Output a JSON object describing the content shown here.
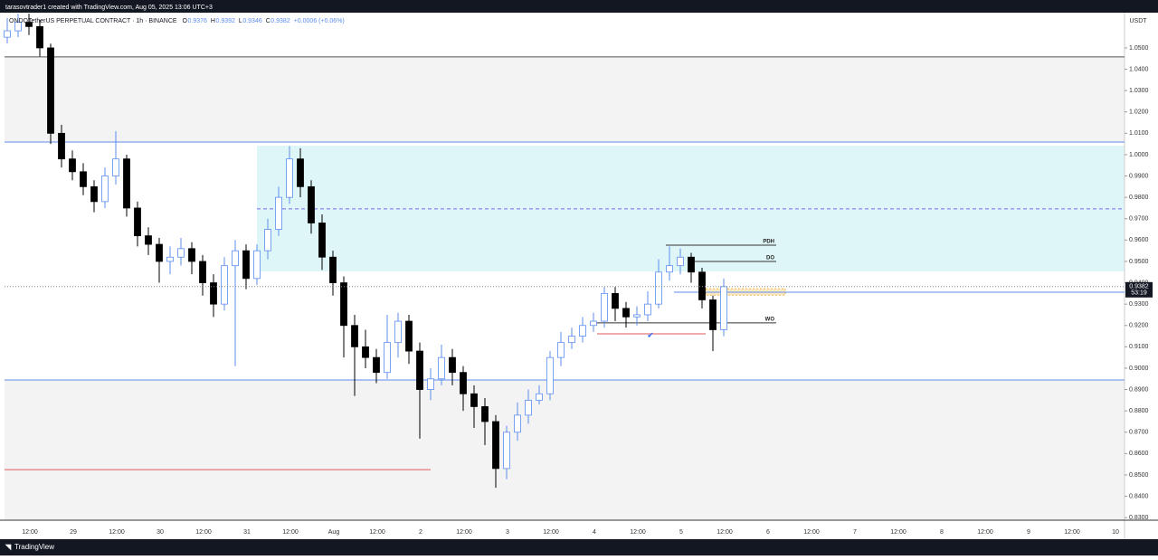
{
  "header": {
    "credit": "tarasovtrader1 created with TradingView.com, Aug 05, 2025 13:06 UTC+3",
    "footer": "TradingView"
  },
  "chart_data": {
    "type": "candlestick",
    "title": "ONDOTetherUS PERPETUAL CONTRACT · 1h · BINANCE",
    "ohlc": [
      {
        "label": "O",
        "value": 0.9376
      },
      {
        "label": "H",
        "value": 0.9392
      },
      {
        "label": "L",
        "value": 0.9346
      },
      {
        "label": "C",
        "value": 0.9382
      }
    ],
    "change": "+0.0006 (+0.06%)",
    "y_axis_label": "USDT",
    "up_color": "#5b8def",
    "down_color": "#000000",
    "candles": [
      [
        1.055,
        1.064,
        1.052,
        1.058
      ],
      [
        1.058,
        1.066,
        1.055,
        1.062
      ],
      [
        1.062,
        1.066,
        1.056,
        1.06
      ],
      [
        1.06,
        1.063,
        1.046,
        1.05
      ],
      [
        1.05,
        1.052,
        1.005,
        1.01
      ],
      [
        1.01,
        1.014,
        0.994,
        0.998
      ],
      [
        0.998,
        1.002,
        0.988,
        0.992
      ],
      [
        0.992,
        0.996,
        0.981,
        0.985
      ],
      [
        0.985,
        0.988,
        0.973,
        0.978
      ],
      [
        0.978,
        0.994,
        0.975,
        0.99
      ],
      [
        0.99,
        1.011,
        0.986,
        0.998
      ],
      [
        0.998,
        1.0,
        0.971,
        0.975
      ],
      [
        0.975,
        0.978,
        0.957,
        0.962
      ],
      [
        0.962,
        0.966,
        0.953,
        0.958
      ],
      [
        0.958,
        0.961,
        0.94,
        0.95
      ],
      [
        0.95,
        0.957,
        0.944,
        0.952
      ],
      [
        0.952,
        0.961,
        0.948,
        0.956
      ],
      [
        0.956,
        0.959,
        0.944,
        0.95
      ],
      [
        0.95,
        0.953,
        0.934,
        0.94
      ],
      [
        0.94,
        0.944,
        0.924,
        0.93
      ],
      [
        0.93,
        0.952,
        0.927,
        0.948
      ],
      [
        0.948,
        0.96,
        0.901,
        0.955
      ],
      [
        0.955,
        0.958,
        0.937,
        0.942
      ],
      [
        0.942,
        0.958,
        0.939,
        0.955
      ],
      [
        0.955,
        0.97,
        0.951,
        0.965
      ],
      [
        0.965,
        0.985,
        0.962,
        0.98
      ],
      [
        0.98,
        1.004,
        0.977,
        0.998
      ],
      [
        0.998,
        1.003,
        0.98,
        0.985
      ],
      [
        0.985,
        0.988,
        0.963,
        0.968
      ],
      [
        0.968,
        0.972,
        0.946,
        0.952
      ],
      [
        0.952,
        0.955,
        0.934,
        0.94
      ],
      [
        0.94,
        0.943,
        0.905,
        0.92
      ],
      [
        0.92,
        0.925,
        0.887,
        0.91
      ],
      [
        0.91,
        0.918,
        0.9,
        0.905
      ],
      [
        0.905,
        0.909,
        0.893,
        0.898
      ],
      [
        0.898,
        0.925,
        0.895,
        0.912
      ],
      [
        0.912,
        0.926,
        0.905,
        0.922
      ],
      [
        0.922,
        0.925,
        0.902,
        0.908
      ],
      [
        0.908,
        0.912,
        0.867,
        0.89
      ],
      [
        0.89,
        0.9,
        0.885,
        0.895
      ],
      [
        0.895,
        0.911,
        0.892,
        0.905
      ],
      [
        0.905,
        0.909,
        0.892,
        0.898
      ],
      [
        0.898,
        0.901,
        0.88,
        0.888
      ],
      [
        0.888,
        0.892,
        0.872,
        0.882
      ],
      [
        0.882,
        0.886,
        0.864,
        0.875
      ],
      [
        0.875,
        0.878,
        0.844,
        0.853
      ],
      [
        0.853,
        0.873,
        0.848,
        0.87
      ],
      [
        0.87,
        0.884,
        0.866,
        0.878
      ],
      [
        0.878,
        0.89,
        0.874,
        0.885
      ],
      [
        0.885,
        0.892,
        0.883,
        0.888
      ],
      [
        0.888,
        0.908,
        0.885,
        0.905
      ],
      [
        0.905,
        0.917,
        0.901,
        0.912
      ],
      [
        0.912,
        0.919,
        0.909,
        0.915
      ],
      [
        0.915,
        0.924,
        0.912,
        0.92
      ],
      [
        0.92,
        0.926,
        0.917,
        0.922
      ],
      [
        0.922,
        0.938,
        0.919,
        0.935
      ],
      [
        0.935,
        0.938,
        0.922,
        0.928
      ],
      [
        0.928,
        0.931,
        0.919,
        0.924
      ],
      [
        0.924,
        0.929,
        0.92,
        0.925
      ],
      [
        0.925,
        0.936,
        0.922,
        0.93
      ],
      [
        0.93,
        0.951,
        0.928,
        0.945
      ],
      [
        0.945,
        0.957,
        0.941,
        0.948
      ],
      [
        0.948,
        0.956,
        0.944,
        0.952
      ],
      [
        0.952,
        0.954,
        0.94,
        0.945
      ],
      [
        0.945,
        0.947,
        0.928,
        0.932
      ],
      [
        0.932,
        0.934,
        0.908,
        0.918
      ],
      [
        0.918,
        0.942,
        0.915,
        0.9382
      ]
    ],
    "x_tick_labels": [
      "12:00",
      "29",
      "12:00",
      "30",
      "12:00",
      "31",
      "12:00",
      "Aug",
      "12:00",
      "2",
      "12:00",
      "3",
      "12:00",
      "4",
      "12:00",
      "5",
      "12:00",
      "6",
      "12:00",
      "7",
      "12:00",
      "8",
      "12:00",
      "9",
      "12:00",
      "10"
    ],
    "ylim": [
      0.8288,
      1.0665
    ],
    "yticks": [
      {
        "value": 0.83,
        "label": "0.8300"
      },
      {
        "value": 0.84,
        "label": "0.8400"
      },
      {
        "value": 0.85,
        "label": "0.8500"
      },
      {
        "value": 0.86,
        "label": "0.8600"
      },
      {
        "value": 0.87,
        "label": "0.8700"
      },
      {
        "value": 0.88,
        "label": "0.8800"
      },
      {
        "value": 0.89,
        "label": "0.8900"
      },
      {
        "value": 0.9,
        "label": "0.9000"
      },
      {
        "value": 0.91,
        "label": "0.9100"
      },
      {
        "value": 0.92,
        "label": "0.9200"
      },
      {
        "value": 0.93,
        "label": "0.9300"
      },
      {
        "value": 0.94,
        "label": "0.9400"
      },
      {
        "value": 0.95,
        "label": "0.9500"
      },
      {
        "value": 0.96,
        "label": "0.9600"
      },
      {
        "value": 0.97,
        "label": "0.9700"
      },
      {
        "value": 0.98,
        "label": "0.9800"
      },
      {
        "value": 0.99,
        "label": "0.9900"
      },
      {
        "value": 1.0,
        "label": "1.0000"
      },
      {
        "value": 1.01,
        "label": "1.0100"
      },
      {
        "value": 1.02,
        "label": "1.0200"
      },
      {
        "value": 1.03,
        "label": "1.0300"
      },
      {
        "value": 1.04,
        "label": "1.0400"
      },
      {
        "value": 1.05,
        "label": "1.0500"
      }
    ],
    "zones": [
      {
        "low": 1.0059,
        "high": 1.0458,
        "color": "#f3f3f3"
      },
      {
        "low": 0.8288,
        "high": 0.8945,
        "color": "#f3f3f3"
      },
      {
        "low": 0.9453,
        "high": 1.0042,
        "color": "#dff6f8"
      },
      {
        "low": 0.9342,
        "high": 0.9372,
        "color": "#fbe9c4"
      }
    ],
    "lines": [
      {
        "value": 1.0458,
        "color": "#555555"
      },
      {
        "value": 1.0059,
        "color": "#5b8def"
      },
      {
        "value": 0.8945,
        "color": "#5b8def"
      },
      {
        "value": 0.9356,
        "color": "#5b8def"
      },
      {
        "value": 0.9746,
        "color": "#7b68ee"
      },
      {
        "name": "PDH",
        "value": 0.9576,
        "color": "#333333"
      },
      {
        "name": "DO",
        "value": 0.95,
        "color": "#333333"
      },
      {
        "name": "WO",
        "value": 0.9212,
        "color": "#333333"
      },
      {
        "value": 0.9161,
        "color": "#e05a5a"
      },
      {
        "value": 0.8525,
        "color": "#e05a5a"
      }
    ],
    "last_price": {
      "value": 0.9382,
      "countdown": "53:19"
    }
  }
}
